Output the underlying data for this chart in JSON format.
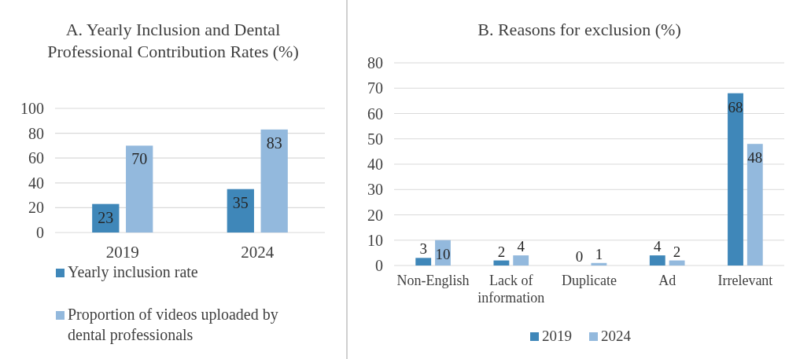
{
  "chart_data": [
    {
      "type": "bar",
      "title": "A. Yearly Inclusion and Dental Professional Contribution Rates (%)",
      "categories": [
        "2019",
        "2024"
      ],
      "series": [
        {
          "name": "Yearly inclusion rate",
          "color": "#3f87b9",
          "values": [
            23,
            35
          ]
        },
        {
          "name": "Proportion of videos uploaded by dental professionals",
          "color": "#93b9dd",
          "values": [
            70,
            83
          ]
        }
      ],
      "ylim": [
        0,
        100
      ],
      "yticks": [
        0,
        20,
        40,
        60,
        80,
        100
      ],
      "grid": "y",
      "legend": "bottom",
      "data_labels": true
    },
    {
      "type": "bar",
      "title": "B. Reasons for exclusion (%)",
      "categories": [
        "Non-English",
        "Lack of information",
        "Duplicate",
        "Ad",
        "Irrelevant"
      ],
      "series": [
        {
          "name": "2019",
          "color": "#3f87b9",
          "values": [
            3,
            2,
            0,
            4,
            68
          ]
        },
        {
          "name": "2024",
          "color": "#93b9dd",
          "values": [
            10,
            4,
            1,
            2,
            48
          ]
        }
      ],
      "ylim": [
        0,
        80
      ],
      "yticks": [
        0,
        10,
        20,
        30,
        40,
        50,
        60,
        70,
        80
      ],
      "grid": "y",
      "legend": "bottom",
      "data_labels": true
    }
  ]
}
